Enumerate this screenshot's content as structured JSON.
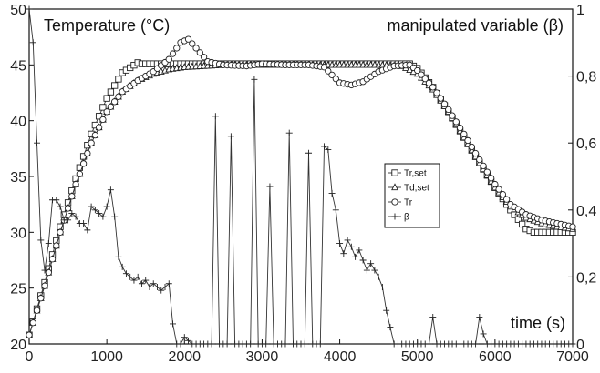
{
  "chart_data": {
    "type": "line",
    "title": "",
    "xlabel": "time (s)",
    "ylabel_left": "Temperature (°C)",
    "ylabel_right": "manipulated variable (β)",
    "xlim": [
      0,
      7000
    ],
    "ylim_left": [
      20,
      50
    ],
    "ylim_right": [
      0,
      1
    ],
    "x_ticks": [
      "0",
      "1000",
      "2000",
      "3000",
      "4000",
      "5000",
      "6000",
      "7000"
    ],
    "y_left_ticks": [
      "20",
      "25",
      "30",
      "35",
      "40",
      "45",
      "50"
    ],
    "y_right_ticks": [
      "0",
      "0,2",
      "0,4",
      "0,6",
      "0,8",
      "1"
    ],
    "grid": false,
    "legend_position": "center-right",
    "series": [
      {
        "name": "Tr,set",
        "axis": "left",
        "marker": "square",
        "x": [
          0,
          200,
          400,
          600,
          800,
          1000,
          1200,
          1400,
          1450,
          2000,
          3000,
          4000,
          4900,
          5000,
          5200,
          5400,
          5600,
          5800,
          6000,
          6200,
          6400,
          6500,
          6700,
          7000
        ],
        "y": [
          20.8,
          25.5,
          30.5,
          34.8,
          38.8,
          42.0,
          44.3,
          45.2,
          45.1,
          45.1,
          45.1,
          45.1,
          45.1,
          44.7,
          43.0,
          40.8,
          38.5,
          36.2,
          34.0,
          32.0,
          30.3,
          30.0,
          30.0,
          30.0
        ]
      },
      {
        "name": "Td,set",
        "axis": "left",
        "marker": "triangle",
        "x": [
          0,
          200,
          400,
          600,
          800,
          1000,
          1200,
          1400,
          1600,
          1800,
          2000,
          2500,
          3000,
          3500,
          4000,
          4500,
          4800,
          5000,
          5200,
          5400,
          5600,
          5800,
          6000,
          6200,
          6400,
          6600,
          6800,
          7000
        ],
        "y": [
          20.8,
          25.2,
          30.0,
          34.3,
          38.0,
          40.8,
          42.6,
          43.6,
          44.2,
          44.6,
          44.8,
          45.0,
          45.0,
          45.0,
          45.0,
          45.0,
          44.9,
          44.2,
          42.8,
          40.8,
          38.5,
          36.2,
          34.0,
          32.3,
          31.3,
          30.8,
          30.5,
          30.3
        ]
      },
      {
        "name": "Tr",
        "axis": "left",
        "marker": "circle",
        "x": [
          0,
          200,
          400,
          600,
          800,
          1000,
          1200,
          1400,
          1600,
          1800,
          1950,
          2050,
          2150,
          2300,
          2500,
          2800,
          3000,
          3300,
          3600,
          3800,
          3900,
          4000,
          4150,
          4300,
          4500,
          4700,
          4900,
          5000,
          5200,
          5400,
          5600,
          5800,
          6000,
          6200,
          6400,
          6600,
          6800,
          7000
        ],
        "y": [
          20.8,
          25.2,
          30.0,
          34.3,
          38.0,
          40.8,
          42.6,
          43.6,
          44.4,
          45.5,
          47.0,
          47.3,
          46.5,
          45.3,
          45.0,
          44.9,
          45.1,
          45.0,
          45.0,
          44.8,
          44.1,
          43.4,
          43.2,
          43.5,
          44.4,
          44.9,
          45.0,
          44.5,
          43.0,
          41.0,
          38.8,
          36.5,
          34.3,
          32.5,
          31.6,
          31.1,
          30.8,
          30.5
        ]
      },
      {
        "name": "β",
        "axis": "right",
        "marker": "plus",
        "x": [
          0,
          50,
          100,
          150,
          200,
          250,
          300,
          350,
          400,
          450,
          500,
          550,
          600,
          650,
          700,
          750,
          800,
          850,
          900,
          950,
          1000,
          1050,
          1100,
          1150,
          1200,
          1250,
          1300,
          1350,
          1400,
          1450,
          1500,
          1550,
          1600,
          1650,
          1700,
          1750,
          1800,
          1850,
          1900,
          1950,
          2000,
          2050,
          2100,
          2200,
          2300,
          2350,
          2400,
          2450,
          2500,
          2550,
          2600,
          2650,
          2700,
          2750,
          2800,
          2850,
          2900,
          2950,
          3000,
          3050,
          3100,
          3150,
          3200,
          3250,
          3300,
          3350,
          3400,
          3450,
          3500,
          3550,
          3600,
          3650,
          3700,
          3750,
          3800,
          3850,
          3900,
          3950,
          4000,
          4050,
          4100,
          4150,
          4200,
          4250,
          4300,
          4350,
          4400,
          4450,
          4500,
          4550,
          4600,
          4650,
          4700,
          5000,
          5100,
          5150,
          5200,
          5250,
          5300,
          5600,
          5700,
          5750,
          5800,
          5850,
          5900,
          7000
        ],
        "y": [
          1.0,
          0.9,
          0.6,
          0.31,
          0.22,
          0.3,
          0.43,
          0.43,
          0.41,
          0.37,
          0.37,
          0.39,
          0.38,
          0.36,
          0.36,
          0.34,
          0.41,
          0.4,
          0.39,
          0.38,
          0.41,
          0.46,
          0.38,
          0.26,
          0.23,
          0.21,
          0.2,
          0.19,
          0.2,
          0.18,
          0.19,
          0.17,
          0.18,
          0.17,
          0.16,
          0.17,
          0.18,
          0.06,
          0.0,
          0.0,
          0.02,
          0.01,
          0.0,
          0.0,
          0.0,
          0.0,
          0.68,
          0.0,
          0.0,
          0.0,
          0.62,
          0.0,
          0.0,
          0.0,
          0.0,
          0.0,
          0.79,
          0.0,
          0.0,
          0.0,
          0.47,
          0.0,
          0.0,
          0.0,
          0.0,
          0.63,
          0.0,
          0.0,
          0.0,
          0.0,
          0.57,
          0.0,
          0.0,
          0.0,
          0.59,
          0.58,
          0.45,
          0.4,
          0.3,
          0.27,
          0.31,
          0.29,
          0.26,
          0.28,
          0.25,
          0.22,
          0.24,
          0.22,
          0.2,
          0.17,
          0.1,
          0.05,
          0.0,
          0.0,
          0.0,
          0.0,
          0.08,
          0.0,
          0.0,
          0.0,
          0.0,
          0.0,
          0.08,
          0.03,
          0.0,
          0.0
        ]
      }
    ]
  }
}
